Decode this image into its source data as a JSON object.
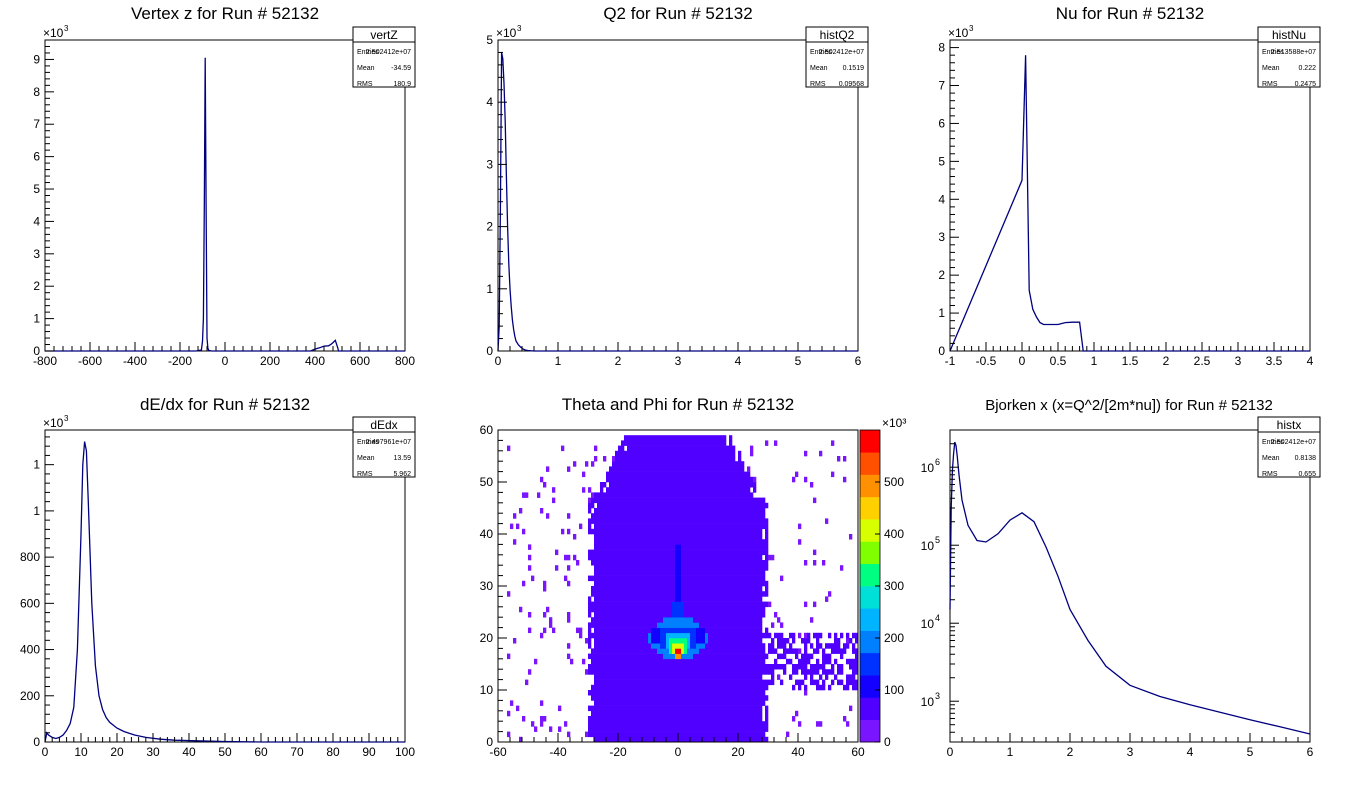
{
  "chart_data": [
    {
      "id": "vertZ",
      "type": "histogram",
      "title": "Vertex z for Run # 52132",
      "exponent_label": "3",
      "stats": {
        "name": "vertZ",
        "rows": [
          [
            "Entries",
            "2.502412e+07"
          ],
          [
            "Mean",
            "-34.59"
          ],
          [
            "RMS",
            "180.9"
          ]
        ]
      },
      "xlim": [
        -800,
        800
      ],
      "ylim": [
        0,
        9600
      ],
      "log_y": false,
      "xticks": [
        -800,
        -600,
        -400,
        -200,
        0,
        200,
        400,
        600,
        800
      ],
      "yticks": [
        0,
        1000,
        2000,
        3000,
        4000,
        5000,
        6000,
        7000,
        8000,
        9000
      ],
      "x": [
        -800,
        -130,
        -105,
        -100,
        -96,
        -92,
        -88,
        -84,
        -80,
        -76,
        -72,
        -60,
        -20,
        380,
        400,
        420,
        440,
        460,
        470,
        480,
        490,
        500,
        505,
        800
      ],
      "y": [
        0,
        0,
        30,
        300,
        1000,
        4400,
        9050,
        4500,
        400,
        80,
        20,
        0,
        0,
        0,
        60,
        100,
        150,
        160,
        200,
        260,
        330,
        120,
        0,
        0
      ]
    },
    {
      "id": "histQ2",
      "type": "histogram",
      "title": "Q2 for Run # 52132",
      "exponent_label": "3",
      "stats": {
        "name": "histQ2",
        "rows": [
          [
            "Entries",
            "2.502412e+07"
          ],
          [
            "Mean",
            "0.1519"
          ],
          [
            "RMS",
            "0.09568"
          ]
        ]
      },
      "xlim": [
        0,
        6
      ],
      "ylim": [
        0,
        5000
      ],
      "log_y": false,
      "xticks": [
        0,
        1,
        2,
        3,
        4,
        5,
        6
      ],
      "yticks": [
        0,
        1000,
        2000,
        3000,
        4000,
        5000
      ],
      "x": [
        0,
        0.02,
        0.04,
        0.06,
        0.08,
        0.1,
        0.12,
        0.14,
        0.16,
        0.18,
        0.2,
        0.22,
        0.24,
        0.26,
        0.28,
        0.3,
        0.34,
        0.38,
        0.42,
        0.46,
        0.5,
        0.6,
        6
      ],
      "y": [
        0,
        400,
        2300,
        4800,
        4700,
        4300,
        3700,
        2800,
        2000,
        1400,
        1000,
        720,
        500,
        350,
        240,
        160,
        100,
        60,
        30,
        15,
        8,
        0,
        0
      ]
    },
    {
      "id": "histNu",
      "type": "histogram",
      "title": "Nu for Run # 52132",
      "exponent_label": "3",
      "stats": {
        "name": "histNu",
        "rows": [
          [
            "Entries",
            "2.513588e+07"
          ],
          [
            "Mean",
            "0.222"
          ],
          [
            "RMS",
            "0.2475"
          ]
        ]
      },
      "xlim": [
        -1,
        4
      ],
      "ylim": [
        0,
        8200
      ],
      "log_y": false,
      "xticks": [
        -1,
        -0.5,
        0,
        0.5,
        1,
        1.5,
        2,
        2.5,
        3,
        3.5,
        4
      ],
      "yticks": [
        0,
        1000,
        2000,
        3000,
        4000,
        5000,
        6000,
        7000,
        8000
      ],
      "x": [
        -1,
        0,
        0.05,
        0.1,
        0.15,
        0.2,
        0.25,
        0.3,
        0.4,
        0.5,
        0.6,
        0.7,
        0.8,
        0.85,
        4
      ],
      "y": [
        0,
        4500,
        7800,
        1600,
        1100,
        900,
        750,
        700,
        700,
        700,
        750,
        760,
        760,
        0,
        0
      ]
    },
    {
      "id": "dEdx",
      "type": "histogram",
      "title": "dE/dx for Run # 52132",
      "exponent_label": "3",
      "stats": {
        "name": "dEdx",
        "rows": [
          [
            "Entries",
            "2.497961e+07"
          ],
          [
            "Mean",
            "13.59"
          ],
          [
            "RMS",
            "5.962"
          ]
        ]
      },
      "xlim": [
        0,
        100
      ],
      "ylim": [
        0,
        1350
      ],
      "log_y": false,
      "xticks": [
        0,
        10,
        20,
        30,
        40,
        50,
        60,
        70,
        80,
        90,
        100
      ],
      "yticks": [
        0,
        200,
        400,
        600,
        800,
        1000,
        1200
      ],
      "x": [
        0,
        0.5,
        1,
        2,
        3,
        4,
        5,
        6,
        7,
        8,
        9,
        10,
        10.5,
        11,
        11.5,
        12,
        13,
        14,
        15,
        16,
        17,
        18,
        20,
        22,
        25,
        28,
        32,
        36,
        42,
        50,
        60,
        100
      ],
      "y": [
        0,
        40,
        30,
        20,
        15,
        20,
        30,
        50,
        80,
        150,
        400,
        900,
        1200,
        1300,
        1260,
        1050,
        600,
        330,
        200,
        140,
        105,
        85,
        60,
        45,
        30,
        20,
        12,
        8,
        5,
        2,
        0,
        0
      ]
    },
    {
      "id": "thetaphi",
      "type": "heatmap",
      "title": "Theta and Phi for Run # 52132",
      "xlim": [
        -60,
        60
      ],
      "ylim": [
        0,
        60
      ],
      "xticks": [
        -60,
        -40,
        -20,
        0,
        20,
        40,
        60
      ],
      "yticks": [
        0,
        10,
        20,
        30,
        40,
        50,
        60
      ],
      "z_max": 600,
      "zticks": [
        0,
        100,
        200,
        300,
        400,
        500
      ],
      "z_exponent_label": "×10³",
      "palette": [
        "#7a16ff",
        "#5000ff",
        "#1400ff",
        "#0032ff",
        "#0080ff",
        "#00b4ff",
        "#00e0d8",
        "#00ff80",
        "#80ff00",
        "#d8ff00",
        "#ffd000",
        "#ff9000",
        "#ff5000",
        "#ff0000"
      ],
      "peak": {
        "x": 0,
        "y": 17
      }
    },
    {
      "id": "histx",
      "type": "histogram",
      "title": "Bjorken x  (x=Q^2/[2m*nu]) for Run # 52132",
      "stats": {
        "name": "histx",
        "rows": [
          [
            "Entries",
            "2.502412e+07"
          ],
          [
            "Mean",
            "0.8138"
          ],
          [
            "RMS",
            "0.655"
          ]
        ]
      },
      "xlim": [
        0,
        6
      ],
      "ylim": [
        300,
        3000000
      ],
      "log_y": true,
      "xticks": [
        0,
        1,
        2,
        3,
        4,
        5,
        6
      ],
      "yticks": [
        1000,
        10000,
        100000,
        1000000
      ],
      "yticklabels": [
        [
          "10",
          "3"
        ],
        [
          "10",
          "4"
        ],
        [
          "10",
          "5"
        ],
        [
          "10",
          "6"
        ]
      ],
      "x": [
        0,
        0.02,
        0.04,
        0.06,
        0.08,
        0.1,
        0.12,
        0.15,
        0.2,
        0.3,
        0.45,
        0.6,
        0.8,
        1.0,
        1.2,
        1.4,
        1.6,
        1.8,
        2.0,
        2.3,
        2.6,
        3.0,
        3.5,
        4.0,
        4.5,
        5.0,
        5.5,
        6.0
      ],
      "y": [
        15000,
        300000,
        900000,
        1500000,
        2100000,
        1900000,
        1400000,
        800000,
        380000,
        180000,
        115000,
        110000,
        140000,
        210000,
        260000,
        200000,
        95000,
        40000,
        15000,
        6000,
        2800,
        1600,
        1150,
        900,
        720,
        580,
        470,
        380
      ]
    }
  ]
}
